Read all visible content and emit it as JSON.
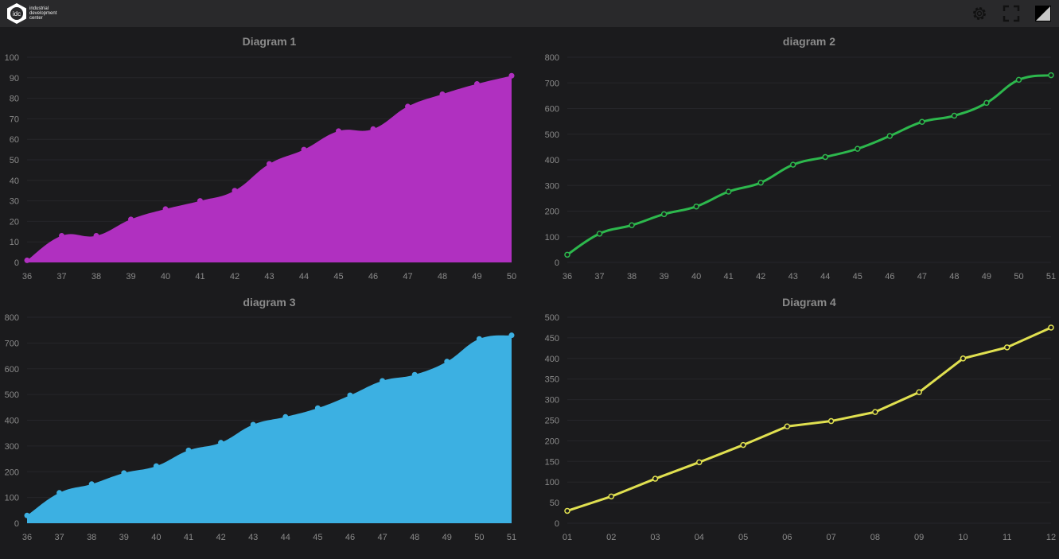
{
  "header": {
    "logo_mark": "idc",
    "logo_text": [
      "industrial",
      "development",
      "center"
    ],
    "icons": [
      "gear-icon",
      "fullscreen-icon",
      "theme-toggle-icon"
    ]
  },
  "chart_data": [
    {
      "type": "area",
      "title": "Diagram 1",
      "color": "#b030c0",
      "categories": [
        "36",
        "37",
        "38",
        "39",
        "40",
        "41",
        "42",
        "43",
        "44",
        "45",
        "46",
        "47",
        "48",
        "49",
        "50"
      ],
      "values": [
        1,
        13,
        13,
        21,
        26,
        30,
        35,
        48,
        55,
        64,
        65,
        76,
        82,
        87,
        91
      ],
      "ylim": [
        0,
        100
      ],
      "yticks": [
        0,
        10,
        20,
        30,
        40,
        50,
        60,
        70,
        80,
        90,
        100
      ],
      "smooth": true
    },
    {
      "type": "line",
      "title": "diagram 2",
      "color": "#2db84d",
      "categories": [
        "36",
        "37",
        "38",
        "39",
        "40",
        "41",
        "42",
        "43",
        "44",
        "45",
        "46",
        "47",
        "48",
        "49",
        "50",
        "51"
      ],
      "values": [
        30,
        112,
        145,
        188,
        218,
        276,
        311,
        381,
        411,
        443,
        493,
        548,
        572,
        622,
        712,
        730
      ],
      "ylim": [
        0,
        800
      ],
      "yticks": [
        0,
        100,
        200,
        300,
        400,
        500,
        600,
        700,
        800
      ],
      "smooth": true
    },
    {
      "type": "area",
      "title": "diagram 3",
      "color": "#3cb0e2",
      "categories": [
        "36",
        "37",
        "38",
        "39",
        "40",
        "41",
        "42",
        "43",
        "44",
        "45",
        "46",
        "47",
        "48",
        "49",
        "50",
        "51"
      ],
      "values": [
        30,
        118,
        152,
        195,
        222,
        283,
        313,
        383,
        413,
        447,
        497,
        553,
        577,
        628,
        716,
        730
      ],
      "ylim": [
        0,
        800
      ],
      "yticks": [
        0,
        100,
        200,
        300,
        400,
        500,
        600,
        700,
        800
      ],
      "smooth": true
    },
    {
      "type": "line",
      "title": "Diagram 4",
      "color": "#e0e050",
      "categories": [
        "01",
        "02",
        "03",
        "04",
        "05",
        "06",
        "07",
        "08",
        "09",
        "10",
        "11",
        "12"
      ],
      "values": [
        30,
        65,
        108,
        148,
        190,
        235,
        248,
        270,
        318,
        400,
        427,
        475
      ],
      "ylim": [
        0,
        500
      ],
      "yticks": [
        0,
        50,
        100,
        150,
        200,
        250,
        300,
        350,
        400,
        450,
        500
      ],
      "smooth": false
    }
  ]
}
